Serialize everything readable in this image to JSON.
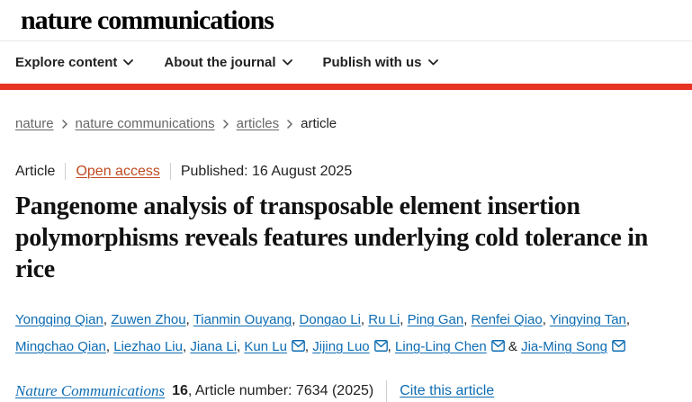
{
  "colors": {
    "nature_red": "#e63323",
    "link_blue": "#0d6cb3",
    "open_access": "#c04a21",
    "breadcrumb_gray": "#666666",
    "text_dark": "#222222"
  },
  "masthead": {
    "logo": "nature communications"
  },
  "nav": {
    "items": [
      {
        "label": "Explore content"
      },
      {
        "label": "About the journal"
      },
      {
        "label": "Publish with us"
      }
    ]
  },
  "breadcrumb": {
    "items": [
      {
        "label": "nature",
        "current": false
      },
      {
        "label": "nature communications",
        "current": false
      },
      {
        "label": "articles",
        "current": false
      },
      {
        "label": "article",
        "current": true
      }
    ]
  },
  "meta": {
    "type": "Article",
    "access": "Open access",
    "published": "Published: 16 August 2025"
  },
  "title": "Pangenome analysis of transposable element insertion polymorphisms reveals features underlying cold tolerance in rice",
  "authors": {
    "list": [
      {
        "name": "Yongqing Qian",
        "email": false
      },
      {
        "name": "Zuwen Zhou",
        "email": false
      },
      {
        "name": "Tianmin Ouyang",
        "email": false
      },
      {
        "name": "Dongao Li",
        "email": false
      },
      {
        "name": "Ru Li",
        "email": false
      },
      {
        "name": "Ping Gan",
        "email": false
      },
      {
        "name": "Renfei Qiao",
        "email": false
      },
      {
        "name": "Yingying Tan",
        "email": false
      },
      {
        "name": "Mingchao Qian",
        "email": false
      },
      {
        "name": "Liezhao Liu",
        "email": false
      },
      {
        "name": "Jiana Li",
        "email": false
      },
      {
        "name": "Kun Lu",
        "email": true
      },
      {
        "name": "Jijing Luo",
        "email": true
      },
      {
        "name": "Ling-Ling Chen",
        "email": true
      },
      {
        "name": "Jia-Ming Song",
        "email": true
      }
    ],
    "separator": ", ",
    "last_separator": " & "
  },
  "citation": {
    "journal": "Nature Communications",
    "volume": "16",
    "rest": ", Article number: 7634 (2025)",
    "cite": "Cite this article"
  }
}
